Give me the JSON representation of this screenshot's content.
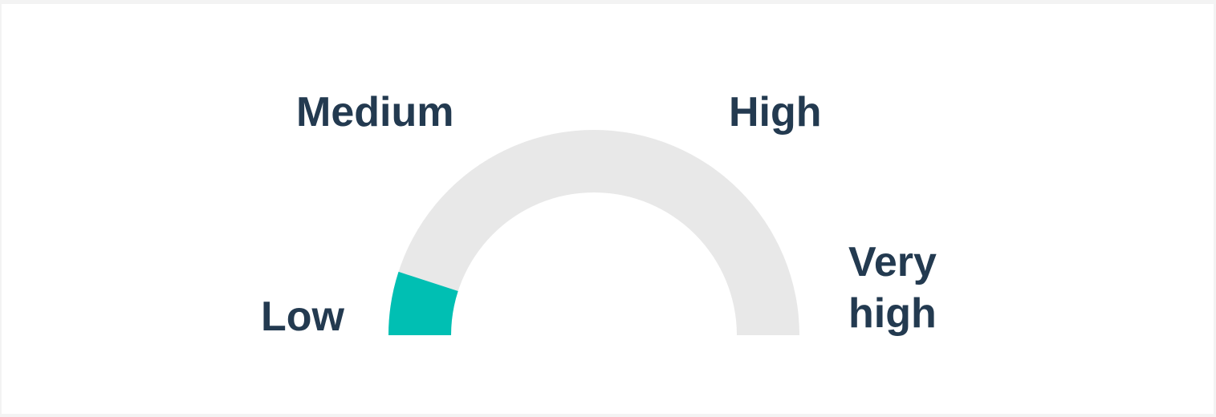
{
  "gauge": {
    "levels": [
      "Low",
      "Medium",
      "High",
      "Very high"
    ],
    "value_fraction": 0.1,
    "colors": {
      "track": "#e8e8e8",
      "fill": "#00bfb3",
      "label": "#233a50"
    }
  },
  "labels": {
    "low": "Low",
    "medium": "Medium",
    "high": "High",
    "very_high": "Very high"
  }
}
